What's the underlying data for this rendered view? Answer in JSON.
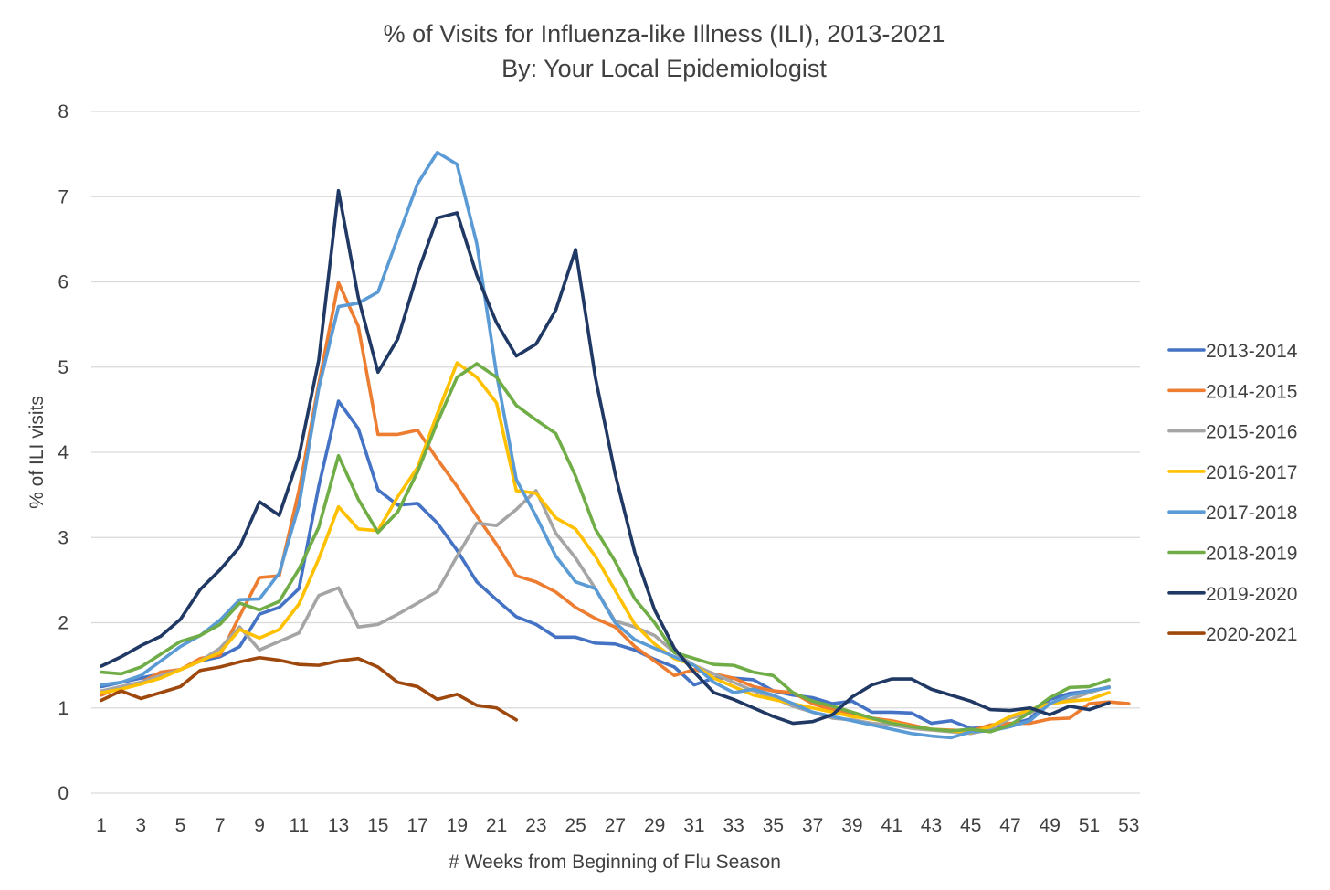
{
  "chart_data": {
    "type": "line",
    "title": "% of Visits for Influenza-like Illness (ILI), 2013-2021",
    "subtitle": "By: Your Local Epidemiologist",
    "xlabel": "# Weeks from Beginning of Flu Season",
    "ylabel": "% of ILI visits",
    "xlim": [
      1,
      53
    ],
    "ylim": [
      0,
      8
    ],
    "x_ticks": [
      "1",
      "3",
      "5",
      "7",
      "9",
      "11",
      "13",
      "15",
      "17",
      "19",
      "21",
      "23",
      "25",
      "27",
      "29",
      "31",
      "33",
      "35",
      "37",
      "39",
      "41",
      "43",
      "45",
      "47",
      "49",
      "51",
      "53"
    ],
    "y_ticks": [
      "0",
      "1",
      "2",
      "3",
      "4",
      "5",
      "6",
      "7",
      "8"
    ],
    "grid": "horizontal",
    "legend_position": "right",
    "series": [
      {
        "name": "2013-2014",
        "color": "#4472C4",
        "values": [
          1.25,
          1.3,
          1.35,
          1.4,
          1.45,
          1.55,
          1.6,
          1.72,
          2.1,
          2.18,
          2.4,
          3.6,
          4.6,
          4.28,
          3.56,
          3.38,
          3.4,
          3.17,
          2.85,
          2.48,
          2.27,
          2.07,
          1.98,
          1.83,
          1.83,
          1.76,
          1.75,
          1.68,
          1.57,
          1.48,
          1.27,
          1.35,
          1.35,
          1.33,
          1.2,
          1.15,
          1.12,
          1.05,
          1.08,
          0.95,
          0.95,
          0.94,
          0.82,
          0.85,
          0.76,
          0.77,
          0.8,
          0.87,
          1.1,
          1.17,
          1.2,
          1.24
        ]
      },
      {
        "name": "2014-2015",
        "color": "#ED7D31",
        "values": [
          1.15,
          1.25,
          1.3,
          1.42,
          1.45,
          1.58,
          1.62,
          2.08,
          2.53,
          2.55,
          3.55,
          4.8,
          5.99,
          5.48,
          4.21,
          4.21,
          4.26,
          3.92,
          3.6,
          3.25,
          2.92,
          2.55,
          2.48,
          2.36,
          2.18,
          2.05,
          1.95,
          1.72,
          1.55,
          1.38,
          1.45,
          1.4,
          1.35,
          1.25,
          1.2,
          1.18,
          1.05,
          0.98,
          0.92,
          0.88,
          0.85,
          0.8,
          0.75,
          0.74,
          0.73,
          0.8,
          0.82,
          0.82,
          0.87,
          0.88,
          1.05,
          1.07,
          1.05
        ]
      },
      {
        "name": "2015-2016",
        "color": "#A5A5A5",
        "values": [
          1.2,
          1.25,
          1.3,
          1.38,
          1.45,
          1.55,
          1.7,
          1.95,
          1.68,
          1.78,
          1.88,
          2.32,
          2.41,
          1.95,
          1.98,
          2.1,
          2.23,
          2.37,
          2.78,
          3.17,
          3.14,
          3.33,
          3.55,
          3.05,
          2.76,
          2.4,
          2.02,
          1.95,
          1.85,
          1.65,
          1.5,
          1.4,
          1.3,
          1.2,
          1.12,
          1.02,
          0.95,
          0.88,
          0.86,
          0.82,
          0.8,
          0.76,
          0.74,
          0.72,
          0.7,
          0.75,
          0.88,
          0.94,
          1.05,
          1.1,
          1.18,
          1.25
        ]
      },
      {
        "name": "2016-2017",
        "color": "#FFC000",
        "values": [
          1.18,
          1.22,
          1.28,
          1.35,
          1.45,
          1.55,
          1.65,
          1.92,
          1.82,
          1.92,
          2.22,
          2.75,
          3.36,
          3.1,
          3.08,
          3.48,
          3.82,
          4.45,
          5.05,
          4.88,
          4.58,
          3.55,
          3.52,
          3.23,
          3.1,
          2.78,
          2.38,
          1.98,
          1.75,
          1.58,
          1.5,
          1.35,
          1.25,
          1.15,
          1.1,
          1.05,
          1.0,
          0.95,
          0.9,
          0.87,
          0.83,
          0.78,
          0.75,
          0.73,
          0.71,
          0.78,
          0.9,
          0.98,
          1.05,
          1.08,
          1.1,
          1.18
        ]
      },
      {
        "name": "2017-2018",
        "color": "#5B9BD5",
        "values": [
          1.27,
          1.3,
          1.38,
          1.55,
          1.72,
          1.85,
          2.03,
          2.27,
          2.28,
          2.58,
          3.38,
          4.75,
          5.71,
          5.75,
          5.88,
          6.52,
          7.15,
          7.52,
          7.38,
          6.45,
          4.92,
          3.68,
          3.25,
          2.78,
          2.48,
          2.4,
          2.0,
          1.8,
          1.7,
          1.6,
          1.5,
          1.3,
          1.18,
          1.22,
          1.15,
          1.05,
          0.95,
          0.9,
          0.85,
          0.8,
          0.75,
          0.7,
          0.67,
          0.65,
          0.72,
          0.73,
          0.78,
          0.85,
          1.05,
          1.15,
          1.2,
          1.24
        ]
      },
      {
        "name": "2018-2019",
        "color": "#70AD47",
        "values": [
          1.42,
          1.4,
          1.48,
          1.63,
          1.78,
          1.85,
          1.98,
          2.23,
          2.15,
          2.25,
          2.63,
          3.12,
          3.96,
          3.45,
          3.06,
          3.3,
          3.77,
          4.35,
          4.88,
          5.04,
          4.88,
          4.55,
          4.38,
          4.22,
          3.72,
          3.1,
          2.72,
          2.28,
          2.0,
          1.65,
          1.58,
          1.51,
          1.5,
          1.42,
          1.38,
          1.18,
          1.08,
          1.02,
          0.95,
          0.88,
          0.82,
          0.78,
          0.75,
          0.73,
          0.75,
          0.72,
          0.8,
          0.95,
          1.12,
          1.24,
          1.25,
          1.33
        ]
      },
      {
        "name": "2019-2020",
        "color": "#203864",
        "values": [
          1.49,
          1.6,
          1.73,
          1.84,
          2.04,
          2.39,
          2.62,
          2.89,
          3.42,
          3.26,
          3.95,
          5.08,
          7.07,
          5.82,
          4.94,
          5.33,
          6.1,
          6.75,
          6.81,
          6.08,
          5.52,
          5.13,
          5.27,
          5.67,
          6.38,
          4.88,
          3.75,
          2.82,
          2.15,
          1.7,
          1.42,
          1.18,
          1.1,
          1.0,
          0.9,
          0.82,
          0.84,
          0.92,
          1.13,
          1.27,
          1.34,
          1.34,
          1.22,
          1.15,
          1.08,
          0.98,
          0.97,
          1.0,
          0.92,
          1.02,
          0.98,
          1.06
        ]
      },
      {
        "name": "2020-2021",
        "color": "#9E480E",
        "values": [
          1.09,
          1.2,
          1.11,
          1.18,
          1.25,
          1.44,
          1.48,
          1.54,
          1.59,
          1.56,
          1.51,
          1.5,
          1.55,
          1.58,
          1.48,
          1.3,
          1.25,
          1.1,
          1.16,
          1.03,
          1.0,
          0.86
        ]
      }
    ]
  }
}
